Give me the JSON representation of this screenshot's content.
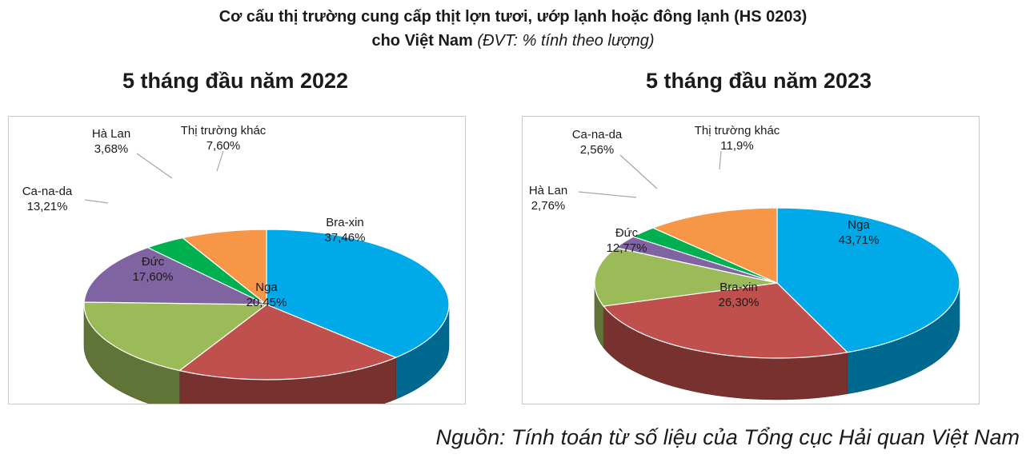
{
  "header": {
    "title_line1": "Cơ cấu thị trường cung cấp thịt lợn tươi, ướp lạnh hoặc đông lạnh (HS 0203)",
    "title_line2_bold": "cho Việt Nam",
    "title_line2_unit": "(ĐVT: % tính theo lượng)"
  },
  "footer": {
    "source": "Nguồn: Tính toán từ số liệu của Tổng cục Hải quan Việt Nam"
  },
  "chart_data": [
    {
      "type": "pie",
      "subtitle": "5 tháng đầu năm 2022",
      "slices": [
        {
          "name": "Bra-xin",
          "value": 37.46,
          "display": "37,46%",
          "color": "#00a9e8"
        },
        {
          "name": "Nga",
          "value": 20.45,
          "display": "20,45%",
          "color": "#c0504d"
        },
        {
          "name": "Đức",
          "value": 17.6,
          "display": "17,60%",
          "color": "#9bbb59"
        },
        {
          "name": "Ca-na-da",
          "value": 13.21,
          "display": "13,21%",
          "color": "#8064a2"
        },
        {
          "name": "Hà Lan",
          "value": 3.68,
          "display": "3,68%",
          "color": "#00b050"
        },
        {
          "name": "Thị trường khác",
          "value": 7.6,
          "display": "7,60%",
          "color": "#f79646"
        }
      ]
    },
    {
      "type": "pie",
      "subtitle": "5 tháng đầu năm 2023",
      "slices": [
        {
          "name": "Nga",
          "value": 43.71,
          "display": "43,71%",
          "color": "#00a9e8"
        },
        {
          "name": "Bra-xin",
          "value": 26.3,
          "display": "26,30%",
          "color": "#c0504d"
        },
        {
          "name": "Đức",
          "value": 12.77,
          "display": "12,77%",
          "color": "#9bbb59"
        },
        {
          "name": "Hà Lan",
          "value": 2.76,
          "display": "2,76%",
          "color": "#8064a2"
        },
        {
          "name": "Ca-na-da",
          "value": 2.56,
          "display": "2,56%",
          "color": "#00b050"
        },
        {
          "name": "Thị trường khác",
          "value": 11.9,
          "display": "11,9%",
          "color": "#f79646"
        }
      ]
    }
  ]
}
